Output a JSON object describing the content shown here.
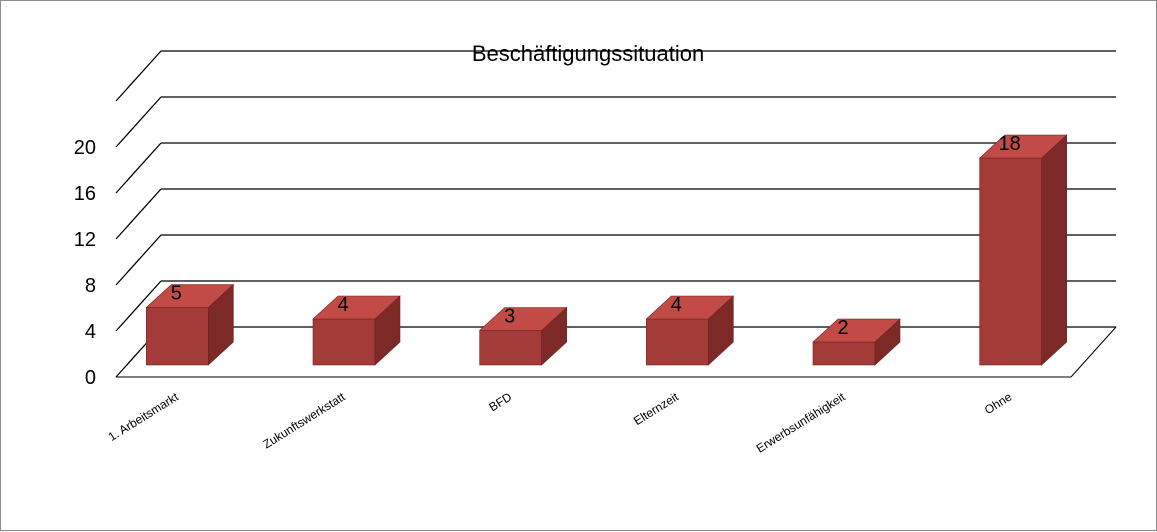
{
  "chart_data": {
    "type": "bar",
    "title": "Beschäftigungssituation",
    "categories": [
      "1. Arbeitsmarkt",
      "Zukunftswerkstatt",
      "BFD",
      "Elternzeit",
      "Erwerbsunfähigkeit",
      "Ohne"
    ],
    "values": [
      5,
      4,
      3,
      4,
      2,
      18
    ],
    "data_labels": [
      "5",
      "4",
      "3",
      "4",
      "2",
      "18"
    ],
    "y_ticks": [
      "0",
      "4",
      "8",
      "12",
      "16",
      "20"
    ],
    "ylim": [
      0,
      24
    ],
    "xlabel": "",
    "ylabel": "",
    "grid": true,
    "legend": "none",
    "style": "3d-column",
    "colors": {
      "bar_front": "#a33b39",
      "bar_side": "#7c2927",
      "bar_top": "#c24a47",
      "gridline": "#000000",
      "frame": "#8c8c8c"
    }
  }
}
